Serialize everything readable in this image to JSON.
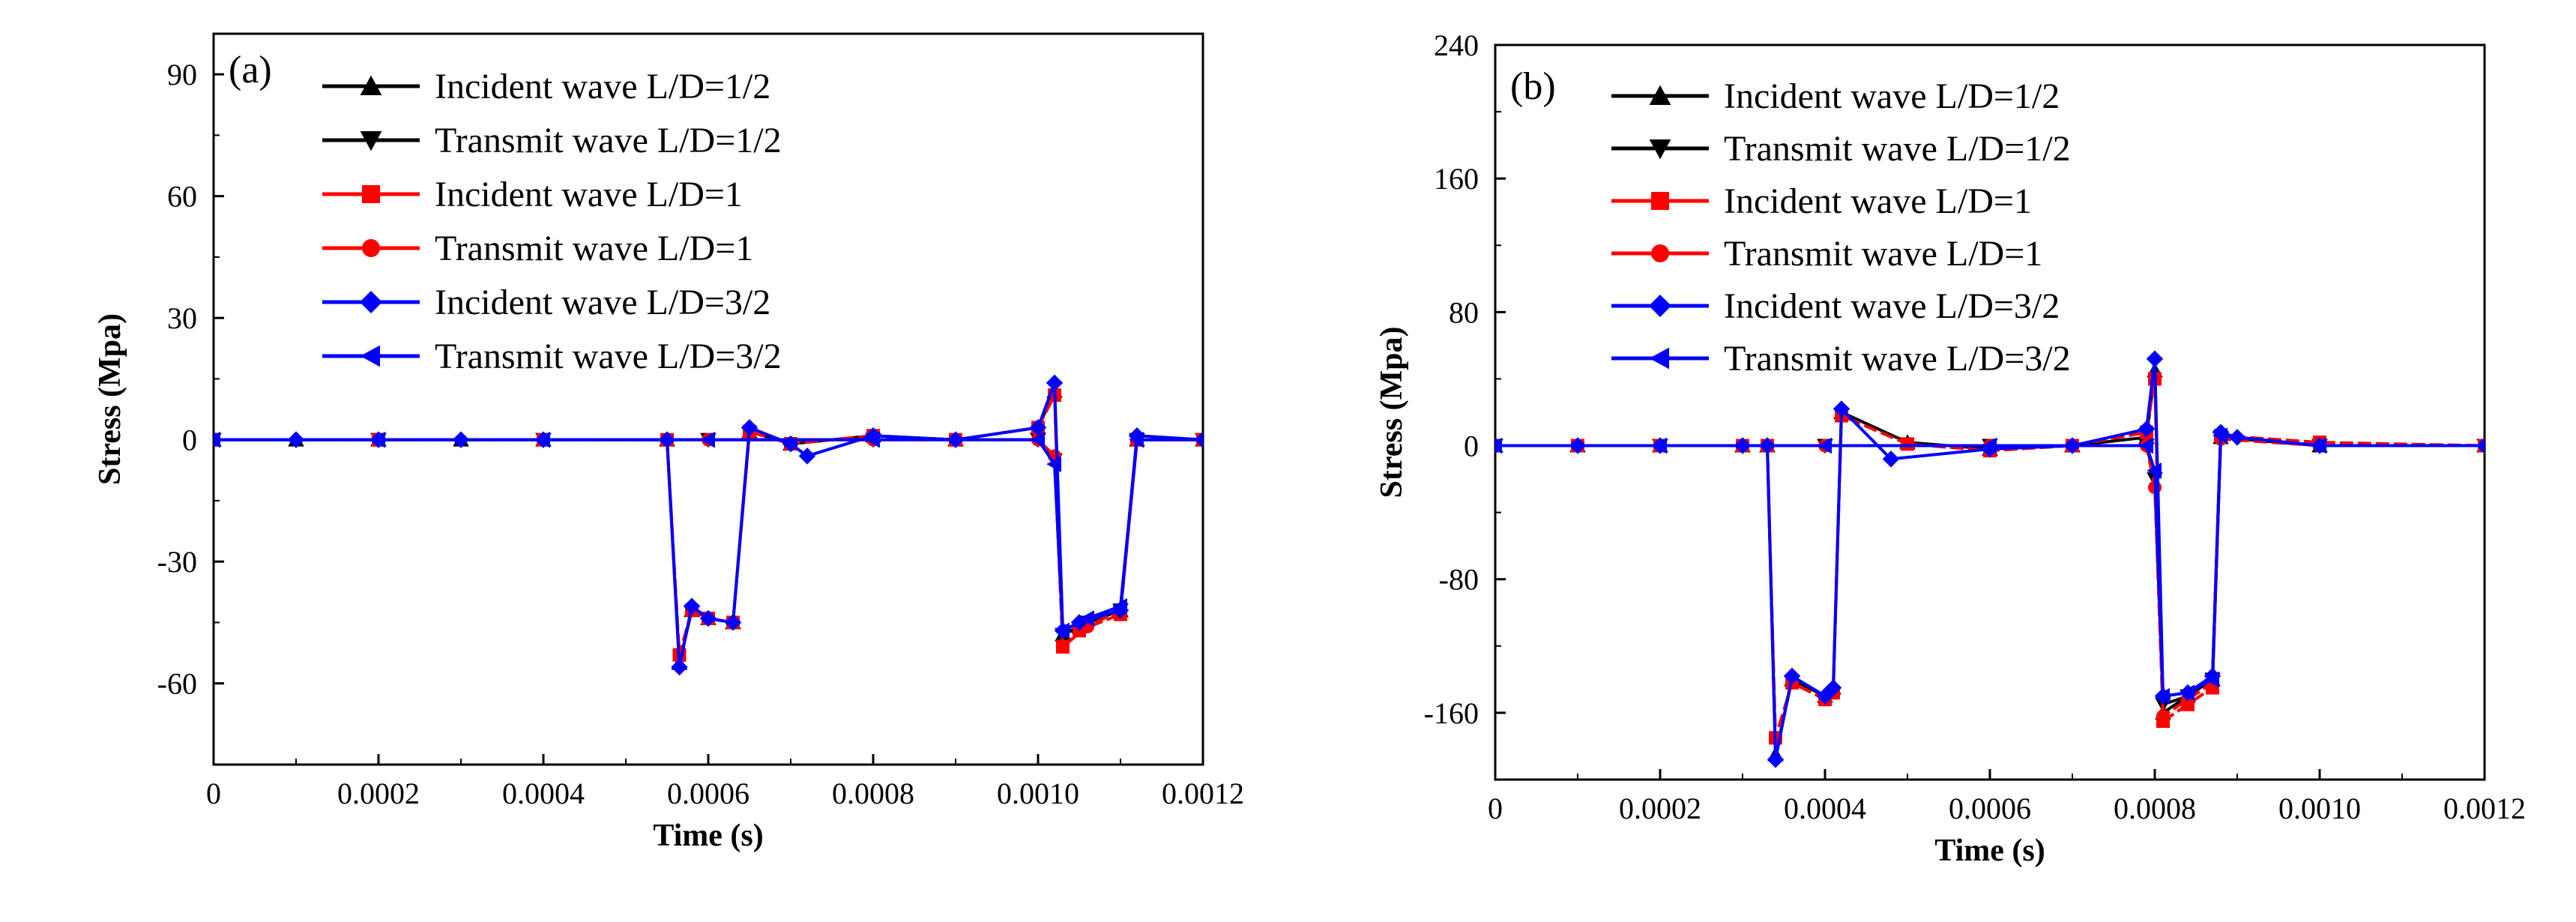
{
  "chart_data": [
    {
      "type": "line",
      "panel_label": "(a)",
      "xlabel": "Time (s)",
      "ylabel": "Stress (Mpa)",
      "xlim": [
        0,
        0.0012
      ],
      "ylim": [
        -80,
        100
      ],
      "xticks": [
        0,
        0.0002,
        0.0004,
        0.0006,
        0.0008,
        0.001,
        0.0012
      ],
      "xtick_labels": [
        "0",
        "0.0002",
        "0.0004",
        "0.0006",
        "0.0008",
        "0.0010",
        "0.0012"
      ],
      "yticks": [
        90,
        60,
        30,
        0,
        -30,
        -60
      ],
      "ytick_labels": [
        "90",
        "60",
        "30",
        "0",
        "-30",
        "-60"
      ],
      "legend_position": "top-left",
      "series": [
        {
          "name": "Incident wave L/D=1/2",
          "color": "#000000",
          "marker": "triangle-up",
          "x": [
            0,
            0.0001,
            0.0002,
            0.0003,
            0.0004,
            0.00055,
            0.000565,
            0.00058,
            0.0006,
            0.00063,
            0.00065,
            0.0007,
            0.0008,
            0.0009,
            0.001,
            0.00102,
            0.00103,
            0.00105,
            0.0011,
            0.00112,
            0.0012
          ],
          "y": [
            0,
            0,
            0,
            0,
            0,
            0,
            -55,
            -42,
            -44,
            -45,
            2,
            -1,
            1,
            0,
            3,
            12,
            -48,
            -46,
            -42,
            0,
            0
          ]
        },
        {
          "name": "Transmit wave L/D=1/2",
          "color": "#000000",
          "marker": "triangle-down",
          "x": [
            0,
            0.0002,
            0.0004,
            0.0006,
            0.0008,
            0.001,
            0.00102,
            0.00103,
            0.00106,
            0.0011,
            0.00112,
            0.0012
          ],
          "y": [
            0,
            0,
            0,
            0,
            0,
            0,
            -5,
            -48,
            -45,
            -42,
            0,
            0
          ]
        },
        {
          "name": "Incident wave L/D=1",
          "color": "#ff0000",
          "marker": "square",
          "x": [
            0,
            0.0002,
            0.0004,
            0.00055,
            0.000565,
            0.00058,
            0.0006,
            0.00063,
            0.00065,
            0.0007,
            0.0008,
            0.0009,
            0.001,
            0.00102,
            0.00103,
            0.00105,
            0.0011,
            0.00112,
            0.0012
          ],
          "y": [
            0,
            0,
            0,
            0,
            -53,
            -42,
            -44,
            -45,
            2,
            -1,
            1,
            0,
            3,
            11,
            -51,
            -47,
            -43,
            0,
            0
          ]
        },
        {
          "name": "Transmit wave L/D=1",
          "color": "#ff0000",
          "marker": "circle",
          "x": [
            0,
            0.0002,
            0.0004,
            0.0006,
            0.0008,
            0.001,
            0.00102,
            0.00103,
            0.00106,
            0.0011,
            0.00112,
            0.0012
          ],
          "y": [
            0,
            0,
            0,
            0,
            0,
            0,
            -4,
            -51,
            -46,
            -42,
            0,
            0
          ]
        },
        {
          "name": "Incident wave L/D=3/2",
          "color": "#0000ff",
          "marker": "diamond",
          "x": [
            0,
            0.0001,
            0.0002,
            0.0003,
            0.0004,
            0.00055,
            0.000565,
            0.00058,
            0.0006,
            0.00063,
            0.00065,
            0.0007,
            0.00072,
            0.0008,
            0.0009,
            0.001,
            0.00102,
            0.00103,
            0.00105,
            0.0011,
            0.00112,
            0.0012
          ],
          "y": [
            0,
            0,
            0,
            0,
            0,
            0,
            -56,
            -41,
            -44,
            -45,
            3,
            -1,
            -4,
            1,
            0,
            3,
            14,
            -47,
            -45,
            -42,
            1,
            0
          ]
        },
        {
          "name": "Transmit wave L/D=3/2",
          "color": "#0000ff",
          "marker": "triangle-left",
          "x": [
            0,
            0.0002,
            0.0004,
            0.0006,
            0.0008,
            0.001,
            0.00102,
            0.00103,
            0.00106,
            0.0011,
            0.00112,
            0.0012
          ],
          "y": [
            0,
            0,
            0,
            0,
            0,
            0,
            -6,
            -47,
            -44,
            -41,
            0,
            0
          ]
        }
      ]
    },
    {
      "type": "line",
      "panel_label": "(b)",
      "xlabel": "Time (s)",
      "ylabel": "Stress (Mpa)",
      "xlim": [
        0,
        0.0012
      ],
      "ylim": [
        -200,
        240
      ],
      "xticks": [
        0,
        0.0002,
        0.0004,
        0.0006,
        0.0008,
        0.001,
        0.0012
      ],
      "xtick_labels": [
        "0",
        "0.0002",
        "0.0004",
        "0.0006",
        "0.0008",
        "0.0010",
        "0.0012"
      ],
      "yticks": [
        240,
        160,
        80,
        0,
        -80,
        -160
      ],
      "ytick_labels": [
        "240",
        "160",
        "80",
        "0",
        "-80",
        "-160"
      ],
      "legend_position": "top-left",
      "series": [
        {
          "name": "Incident wave L/D=1/2",
          "color": "#000000",
          "marker": "triangle-up",
          "x": [
            0,
            0.0001,
            0.0002,
            0.0003,
            0.00033,
            0.00034,
            0.00036,
            0.0004,
            0.00041,
            0.00042,
            0.0005,
            0.0006,
            0.0007,
            0.00079,
            0.0008,
            0.00081,
            0.00084,
            0.00087,
            0.00088,
            0.001,
            0.0012
          ],
          "y": [
            0,
            0,
            0,
            0,
            0,
            -185,
            -140,
            -150,
            -145,
            20,
            2,
            -2,
            0,
            5,
            45,
            -160,
            -150,
            -140,
            5,
            0,
            0
          ]
        },
        {
          "name": "Transmit wave L/D=1/2",
          "color": "#000000",
          "marker": "triangle-down",
          "x": [
            0,
            0.0002,
            0.0004,
            0.0006,
            0.00079,
            0.0008,
            0.00081,
            0.00084,
            0.00087,
            0.00088,
            0.001,
            0.0012
          ],
          "y": [
            0,
            0,
            0,
            0,
            0,
            -20,
            -155,
            -150,
            -140,
            5,
            0,
            0
          ]
        },
        {
          "name": "Incident wave L/D=1",
          "color": "#ff0000",
          "marker": "square",
          "x": [
            0,
            0.0001,
            0.0002,
            0.0003,
            0.00033,
            0.00034,
            0.00036,
            0.0004,
            0.00041,
            0.00042,
            0.0005,
            0.0006,
            0.0007,
            0.00079,
            0.0008,
            0.00081,
            0.00084,
            0.00087,
            0.00088,
            0.001,
            0.0012
          ],
          "y": [
            0,
            0,
            0,
            0,
            0,
            -175,
            -142,
            -152,
            -148,
            18,
            1,
            -3,
            0,
            8,
            40,
            -165,
            -155,
            -145,
            6,
            2,
            0
          ]
        },
        {
          "name": "Transmit wave L/D=1",
          "color": "#ff0000",
          "marker": "circle",
          "x": [
            0,
            0.0002,
            0.0004,
            0.0006,
            0.00079,
            0.0008,
            0.00081,
            0.00084,
            0.00087,
            0.00088,
            0.001,
            0.0012
          ],
          "y": [
            0,
            0,
            0,
            0,
            0,
            -25,
            -162,
            -152,
            -142,
            4,
            0,
            0
          ]
        },
        {
          "name": "Incident wave L/D=3/2",
          "color": "#0000ff",
          "marker": "diamond",
          "x": [
            0,
            0.0001,
            0.0002,
            0.0003,
            0.00033,
            0.00034,
            0.00036,
            0.0004,
            0.00041,
            0.00042,
            0.00048,
            0.0006,
            0.0007,
            0.00079,
            0.0008,
            0.00081,
            0.00084,
            0.00087,
            0.00088,
            0.0009,
            0.001,
            0.0012
          ],
          "y": [
            0,
            0,
            0,
            0,
            0,
            -188,
            -138,
            -150,
            -145,
            22,
            -8,
            -2,
            0,
            10,
            52,
            -150,
            -148,
            -138,
            8,
            5,
            0,
            0
          ]
        },
        {
          "name": "Transmit wave L/D=3/2",
          "color": "#0000ff",
          "marker": "triangle-left",
          "x": [
            0,
            0.0002,
            0.0004,
            0.0006,
            0.00079,
            0.0008,
            0.00081,
            0.00084,
            0.00087,
            0.00088,
            0.001,
            0.0012
          ],
          "y": [
            0,
            0,
            0,
            0,
            0,
            -15,
            -150,
            -148,
            -140,
            6,
            0,
            0
          ]
        }
      ]
    }
  ]
}
